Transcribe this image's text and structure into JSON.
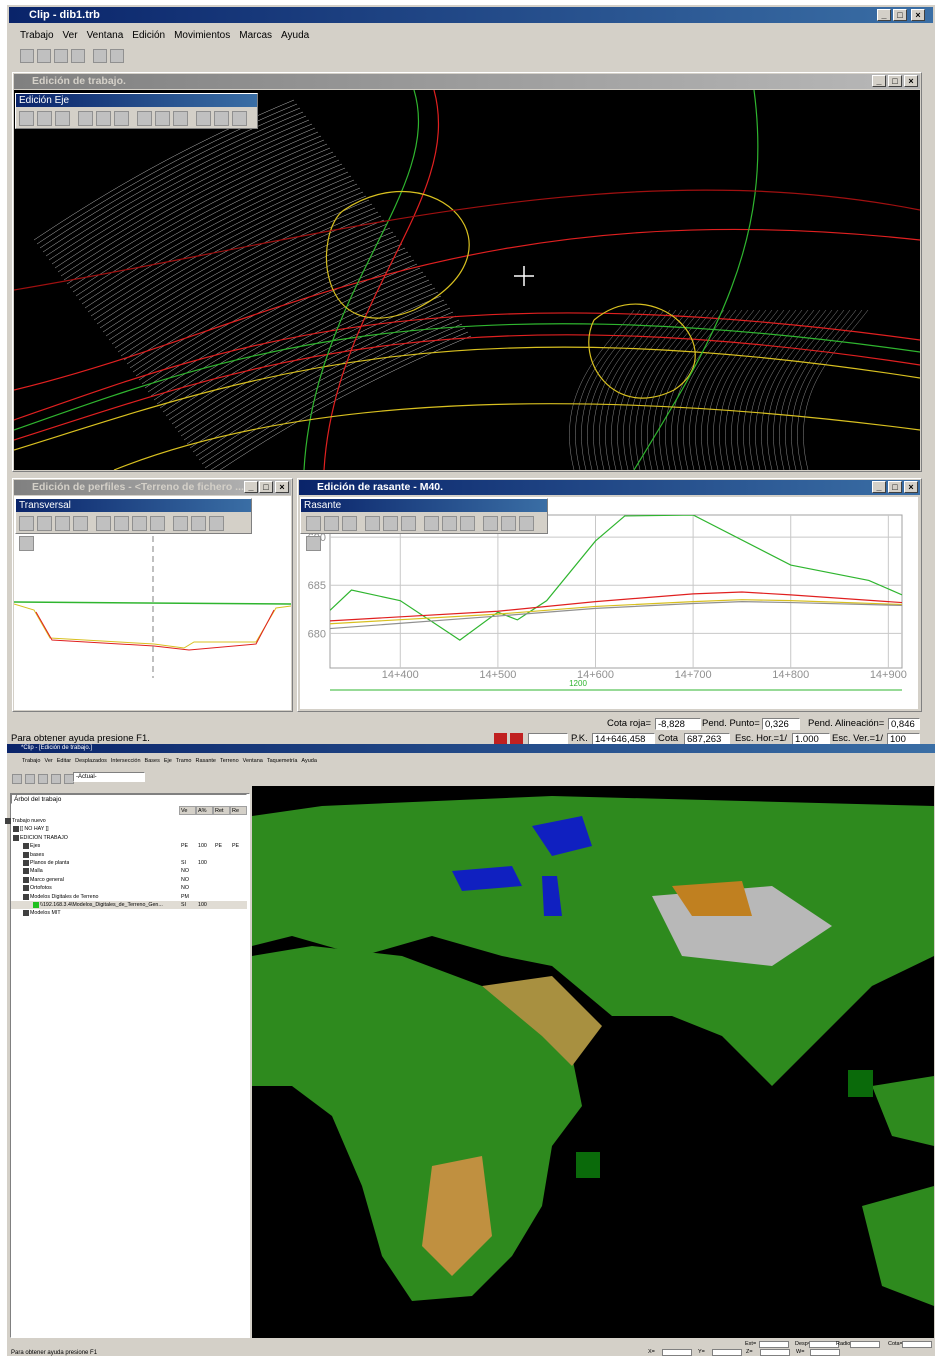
{
  "app_title": "Clip - dib1.trb",
  "menu": [
    "Trabajo",
    "Ver",
    "Ventana",
    "Edición",
    "Movimientos",
    "Marcas",
    "Ayuda"
  ],
  "work_window": {
    "title": "Edición de trabajo.",
    "toolbox": "Edición Eje"
  },
  "profiles_window": {
    "title": "Edición de perfiles - <Terreno de fichero ...",
    "toolbox": "Transversal"
  },
  "rasante_window": {
    "title": "Edición de rasante - M40.",
    "toolbox": "Rasante",
    "chart": {
      "type": "line",
      "xlim": [
        14328,
        14914
      ],
      "ylim": [
        676.4,
        692.3
      ],
      "xticks": [
        {
          "value": 14400,
          "label": "14+400"
        },
        {
          "value": 14500,
          "label": "14+500"
        },
        {
          "value": 14600,
          "label": "14+600"
        },
        {
          "value": 14700,
          "label": "14+700"
        },
        {
          "value": 14800,
          "label": "14+800"
        },
        {
          "value": 14900,
          "label": "14+900"
        }
      ],
      "yticks": [
        680,
        685,
        690
      ],
      "grid": true,
      "scale_label": "1200",
      "series": [
        {
          "color": "#2fb52f",
          "x": [
            14328,
            14350,
            14400,
            14461,
            14500,
            14520,
            14550,
            14600,
            14630,
            14700,
            14800,
            14880,
            14914
          ],
          "values": [
            682.4,
            684.5,
            683.4,
            679.3,
            682.2,
            681.4,
            683.4,
            689.6,
            692.2,
            692.3,
            687.1,
            685.5,
            684.0
          ]
        },
        {
          "color": "#e02020",
          "x": [
            14328,
            14500,
            14600,
            14700,
            14750,
            14800,
            14914
          ],
          "values": [
            681.3,
            682.3,
            683.3,
            684.1,
            684.3,
            684.0,
            683.2
          ]
        },
        {
          "color": "#d8c020",
          "x": [
            14328,
            14500,
            14600,
            14700,
            14750,
            14800,
            14914
          ],
          "values": [
            681.0,
            682.0,
            682.8,
            683.3,
            683.5,
            683.4,
            683.0
          ]
        },
        {
          "color": "#909090",
          "x": [
            14328,
            14500,
            14600,
            14700,
            14750,
            14800,
            14914
          ],
          "values": [
            680.5,
            681.8,
            682.6,
            683.1,
            683.3,
            683.2,
            682.9
          ]
        }
      ]
    }
  },
  "status": {
    "help": "Para obtener ayuda presione F1.",
    "fields": [
      {
        "label": "Cota roja=",
        "value": "-8,828"
      },
      {
        "label": "Pend. Punto=",
        "value": "0,326"
      },
      {
        "label": "Pend. Alineación=",
        "value": "0,846"
      },
      {
        "label": "P.K.",
        "value": "14+646,458"
      },
      {
        "label": "Cota",
        "value": "687,263"
      },
      {
        "label": "Esc. Hor.=1/",
        "value": "1.000"
      },
      {
        "label": "Esc. Ver.=1/",
        "value": "100"
      }
    ]
  },
  "second": {
    "title": "*Clip - [Edición de trabajo.]",
    "menu": [
      "Trabajo",
      "Ver",
      "Editar",
      "Desplazados",
      "Intersección",
      "Bases",
      "Eje",
      "Tramo",
      "Rasante",
      "Terreno",
      "Ventana",
      "Taquemetría",
      "Ayuda"
    ],
    "combo": "-Actual-",
    "tree": {
      "title": "Árbol del trabajo",
      "columns": [
        "Ve",
        "A%",
        "Ret",
        "Re"
      ],
      "rows": [
        {
          "label": "Trabajo nuevo"
        },
        {
          "label": "[[ NO HAY ]]"
        },
        {
          "label": "EDICION TRABAJO"
        },
        {
          "label": "Ejes",
          "cells": [
            "PE",
            "100",
            "PE",
            "PE"
          ]
        },
        {
          "label": "bases"
        },
        {
          "label": "Planos de planta",
          "cells": [
            "SI",
            "100"
          ]
        },
        {
          "label": "Malla",
          "cells": [
            "NO"
          ]
        },
        {
          "label": "Marco general",
          "cells": [
            "NO"
          ]
        },
        {
          "label": "Ortofotos",
          "cells": [
            "NO"
          ]
        },
        {
          "label": "Modelos Digitales de Terreno",
          "cells": [
            "PM"
          ]
        },
        {
          "label": "\\\\192.168.3.4\\Modelos_Digitales_de_Terreno_Gen...",
          "cells": [
            "SI",
            "100"
          ]
        },
        {
          "label": "Modelos MIT"
        }
      ]
    },
    "status": {
      "help": "Para obtener ayuda presione F1",
      "fields": [
        "Ext=",
        "Desp=",
        "Radio=",
        "Cota=",
        "X=",
        "Y=",
        "Z=",
        "W="
      ]
    }
  }
}
